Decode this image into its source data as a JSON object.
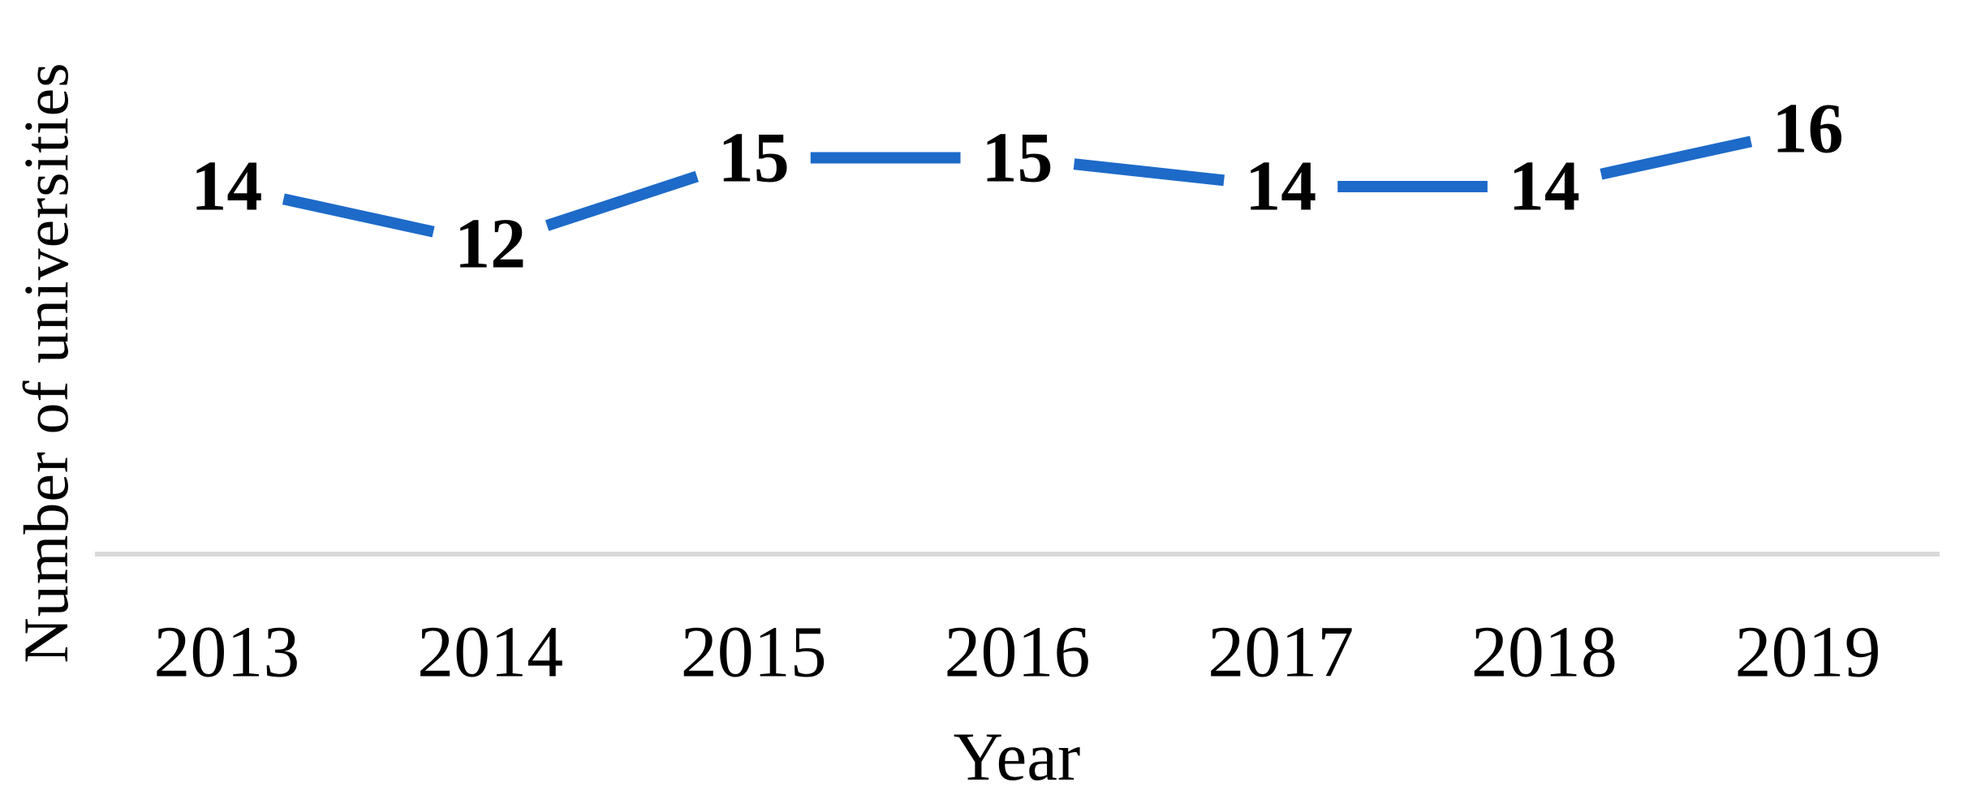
{
  "chart_data": {
    "type": "line",
    "title": "",
    "categories": [
      "2013",
      "2014",
      "2015",
      "2016",
      "2017",
      "2018",
      "2019"
    ],
    "series": [
      {
        "name": "Number of universities",
        "values": [
          14,
          12,
          15,
          15,
          14,
          14,
          16
        ]
      }
    ],
    "data_labels": [
      "14",
      "12",
      "15",
      "15",
      "14",
      "14",
      "16"
    ],
    "xlabel": "Year",
    "ylabel": "Number of universities",
    "x_ticks": [
      "2013",
      "2014",
      "2015",
      "2016",
      "2017",
      "2018",
      "2019"
    ],
    "y_ticks": [],
    "y_axis_visible": false,
    "gridlines": false,
    "legend_position": "none",
    "colors": {
      "line": "#1D6AC9",
      "axis_line": "#D9D9D9",
      "text": "#000000",
      "background": "#FFFFFF"
    }
  }
}
